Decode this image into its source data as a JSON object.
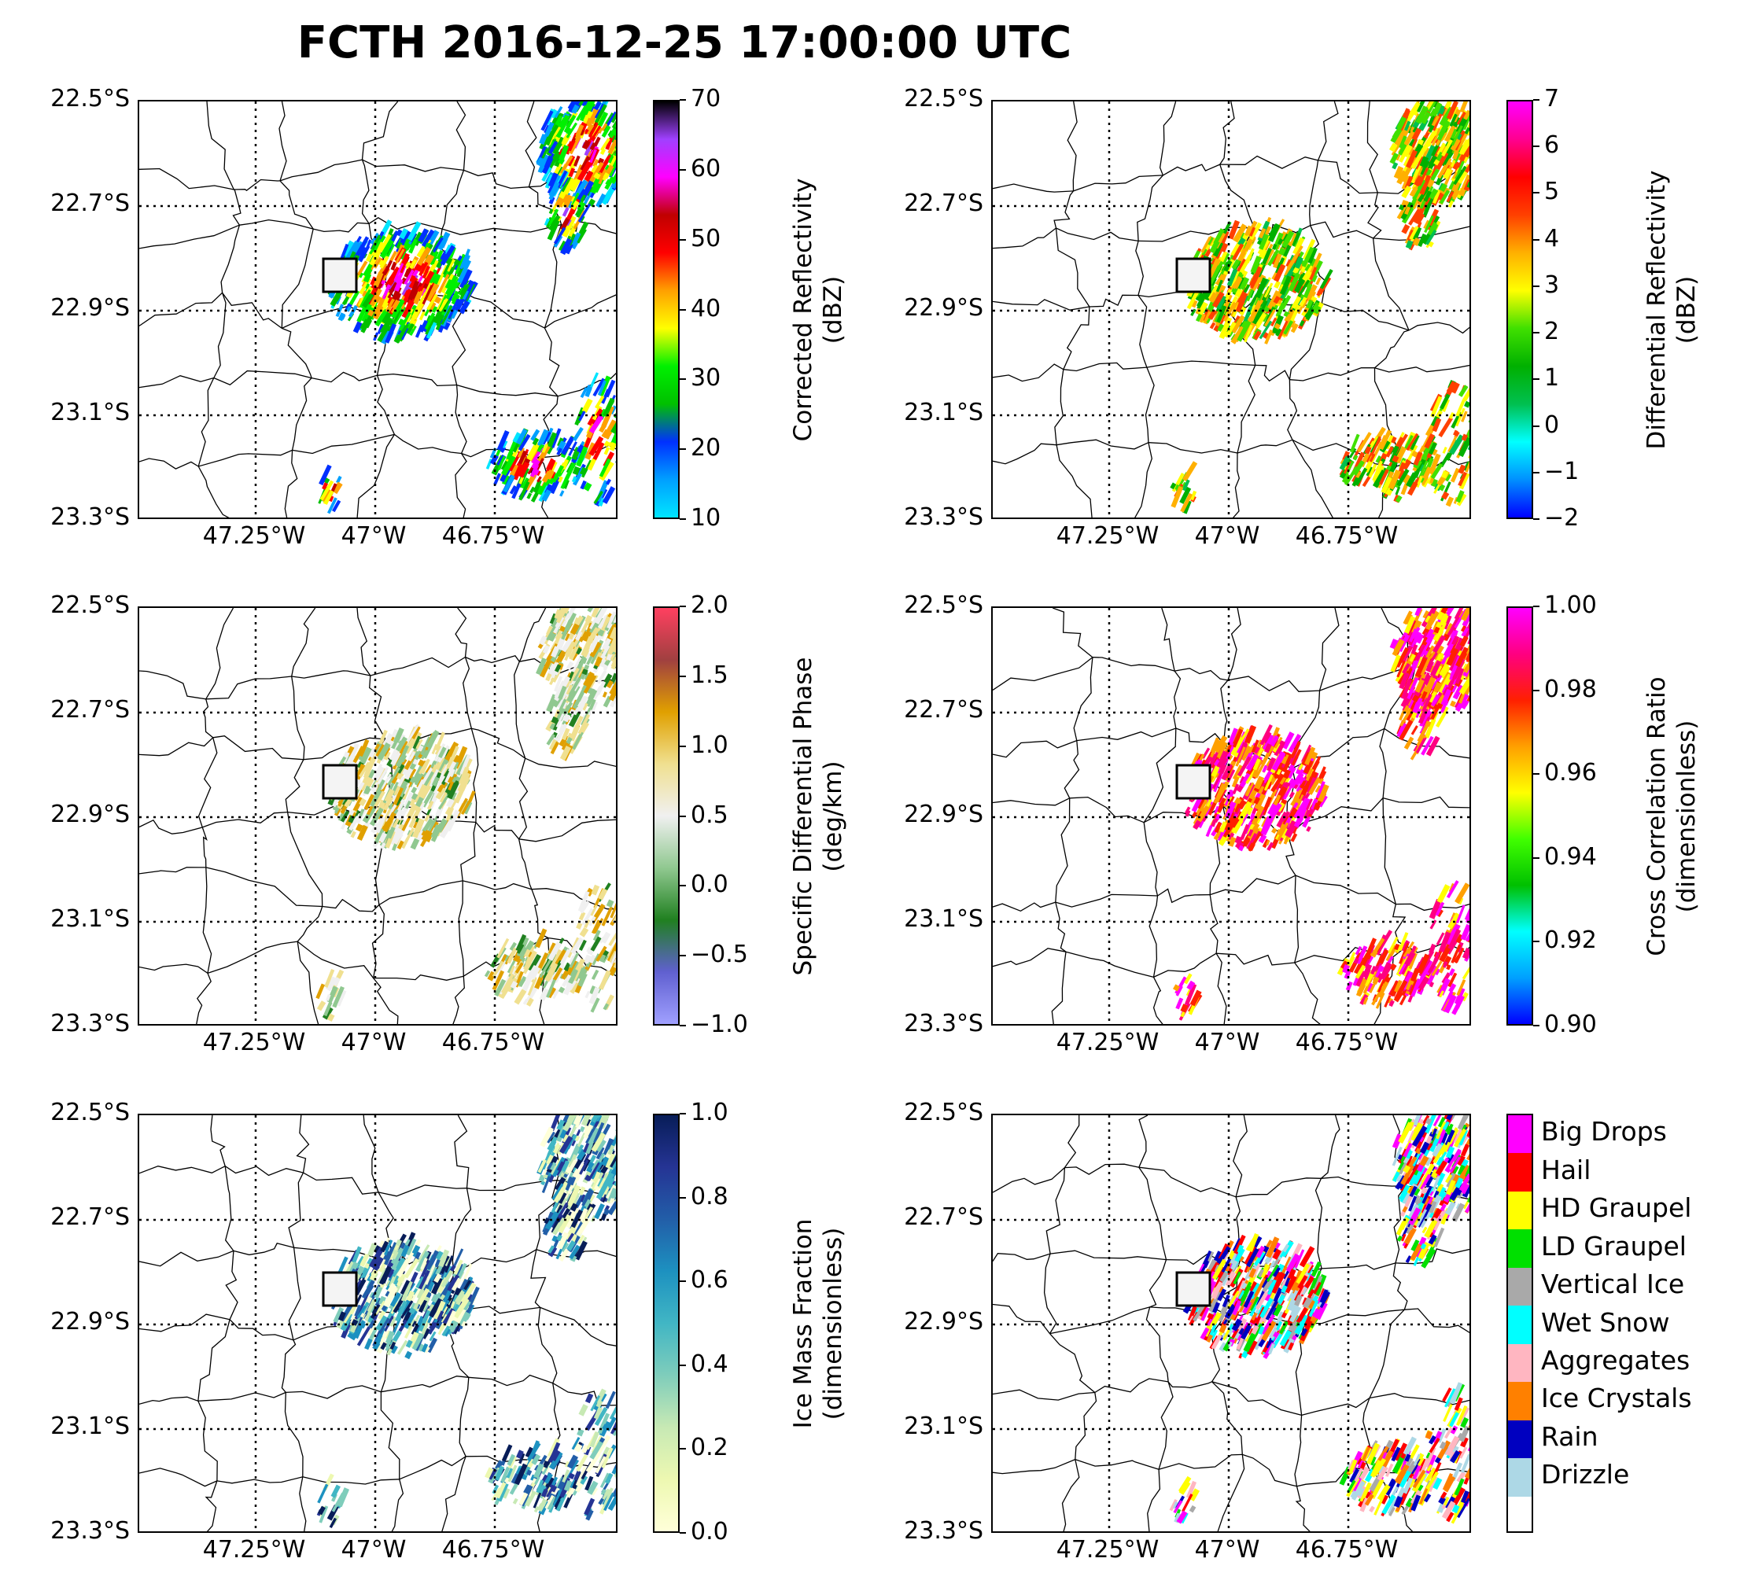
{
  "title": "FCTH 2016-12-25 17:00:00 UTC",
  "axes": {
    "lat_labels": [
      "22.5°S",
      "22.7°S",
      "22.9°S",
      "23.1°S",
      "23.3°S"
    ],
    "lon_labels": [
      "47.25°W",
      "47°W",
      "46.75°W"
    ]
  },
  "colors": {
    "border": "#000000",
    "background": "#ffffff",
    "gridline": "#000000"
  },
  "panels": [
    {
      "id": "refl",
      "colorbar_label_line1": "Corrected Reflectivity",
      "colorbar_label_line2": "(dBZ)",
      "ticks": [
        "10",
        "20",
        "30",
        "40",
        "50",
        "60",
        "70"
      ],
      "tick_values": [
        10,
        20,
        30,
        40,
        50,
        60,
        70
      ],
      "vmin": 10,
      "vmax": 70,
      "colormap": [
        "#00e5ff",
        "#00a0ff",
        "#0030ff",
        "#00c000",
        "#00f000",
        "#ffff00",
        "#ffa000",
        "#ff0000",
        "#c00000",
        "#ff00ff",
        "#a040ff",
        "#000000"
      ]
    },
    {
      "id": "zdr",
      "colorbar_label_line1": "Differential Reflectivity",
      "colorbar_label_line2": "(dBZ)",
      "ticks": [
        "−2",
        "−1",
        "0",
        "1",
        "2",
        "3",
        "4",
        "5",
        "6",
        "7"
      ],
      "tick_values": [
        -2,
        -1,
        0,
        1,
        2,
        3,
        4,
        5,
        6,
        7
      ],
      "vmin": -2,
      "vmax": 7,
      "colormap": [
        "#0000ff",
        "#0090ff",
        "#00ffff",
        "#00c050",
        "#00b000",
        "#40e000",
        "#ffff00",
        "#ffb000",
        "#ff4000",
        "#ff0000",
        "#ff0090",
        "#ff00ff"
      ]
    },
    {
      "id": "kdp",
      "colorbar_label_line1": "Specific Differential Phase",
      "colorbar_label_line2": "(deg/km)",
      "ticks": [
        "−1.0",
        "−0.5",
        "0.0",
        "0.5",
        "1.0",
        "1.5",
        "2.0"
      ],
      "tick_values": [
        -1.0,
        -0.5,
        0.0,
        0.5,
        1.0,
        1.5,
        2.0
      ],
      "vmin": -1.0,
      "vmax": 2.0,
      "colormap": [
        "#a0a0ff",
        "#6060d0",
        "#208020",
        "#90c890",
        "#f0f0f0",
        "#f0e090",
        "#e0a000",
        "#a04040",
        "#ff4060"
      ]
    },
    {
      "id": "rhohv",
      "colorbar_label_line1": "Cross Correlation Ratio",
      "colorbar_label_line2": "(dimensionless)",
      "ticks": [
        "0.90",
        "0.92",
        "0.94",
        "0.96",
        "0.98",
        "1.00"
      ],
      "tick_values": [
        0.9,
        0.92,
        0.94,
        0.96,
        0.98,
        1.0
      ],
      "vmin": 0.9,
      "vmax": 1.0,
      "colormap": [
        "#0000ff",
        "#00a0ff",
        "#00ffff",
        "#00c000",
        "#40ff00",
        "#ffff00",
        "#ffa000",
        "#ff2000",
        "#ff0080",
        "#ff00ff"
      ]
    },
    {
      "id": "icefrac",
      "colorbar_label_line1": "Ice Mass Fraction",
      "colorbar_label_line2": "(dimensionless)",
      "ticks": [
        "0.0",
        "0.2",
        "0.4",
        "0.6",
        "0.8",
        "1.0"
      ],
      "tick_values": [
        0.0,
        0.2,
        0.4,
        0.6,
        0.8,
        1.0
      ],
      "vmin": 0.0,
      "vmax": 1.0,
      "colormap": [
        "#ffffd9",
        "#edf8b1",
        "#c7e9b4",
        "#7fcdbb",
        "#41b6c4",
        "#1d91c0",
        "#225ea8",
        "#253494",
        "#081d58"
      ]
    },
    {
      "id": "hydroclass",
      "legend": [
        {
          "label": "Big Drops",
          "color": "#ff00ff"
        },
        {
          "label": "Hail",
          "color": "#ff0000"
        },
        {
          "label": "HD Graupel",
          "color": "#ffff00"
        },
        {
          "label": "LD Graupel",
          "color": "#00e000"
        },
        {
          "label": "Vertical Ice",
          "color": "#a9a9a9"
        },
        {
          "label": "Wet Snow",
          "color": "#00ffff"
        },
        {
          "label": "Aggregates",
          "color": "#ffb6c1"
        },
        {
          "label": "Ice Crystals",
          "color": "#ff8000"
        },
        {
          "label": "Rain",
          "color": "#0000c0"
        },
        {
          "label": "Drizzle",
          "color": "#add8e6"
        },
        {
          "label": "",
          "color": "#ffffff"
        }
      ]
    }
  ]
}
